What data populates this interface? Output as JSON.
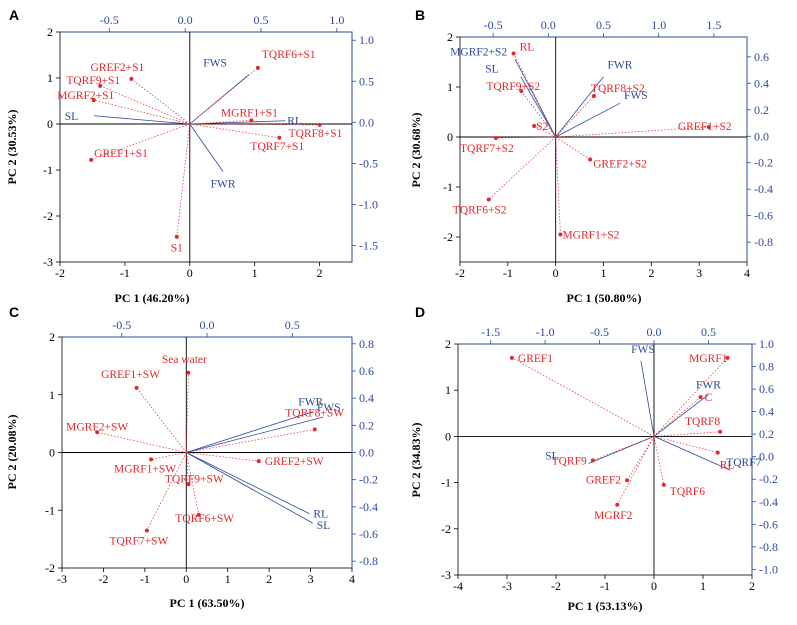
{
  "colors": {
    "score": "#e8262a",
    "loading": "#2e4a9e",
    "axis": "#000000",
    "secondary_axis": "#2e4a9e"
  },
  "chart_data": [
    {
      "panel": "A",
      "type": "scatter",
      "subtype": "pca-biplot",
      "xlabel": "PC 1 (46.20%)",
      "ylabel": "PC 2 (30.53%)",
      "xlim": [
        -2,
        2.5
      ],
      "ylim": [
        -3,
        2
      ],
      "xticks": [
        -2,
        -1,
        0,
        1,
        2
      ],
      "yticks": [
        -3,
        -2,
        -1,
        0,
        1,
        2
      ],
      "top_lim": [
        -0.825,
        1.1
      ],
      "top_ticks": [
        -0.5,
        0.0,
        0.5,
        1.0
      ],
      "right_lim": [
        -1.7,
        1.1
      ],
      "right_ticks": [
        -1.5,
        -1.0,
        -0.5,
        0.0,
        0.5,
        1.0
      ],
      "scores": [
        {
          "label": "GREF2+S1",
          "x": -0.9,
          "y": 0.98
        },
        {
          "label": "TQRF9+S1",
          "x": -1.38,
          "y": 0.83
        },
        {
          "label": "MGRF2+S1",
          "x": -1.48,
          "y": 0.52
        },
        {
          "label": "GREF1+S1",
          "x": -1.52,
          "y": -0.78
        },
        {
          "label": "S1",
          "x": -0.2,
          "y": -2.45
        },
        {
          "label": "TQRF6+S1",
          "x": 1.05,
          "y": 1.22
        },
        {
          "label": "MGRF1+S1",
          "x": 0.95,
          "y": 0.08
        },
        {
          "label": "TQRF8+S1",
          "x": 2.0,
          "y": -0.02
        },
        {
          "label": "TQRF7+S1",
          "x": 1.38,
          "y": -0.3
        }
      ],
      "loadings": [
        {
          "label": "FWS",
          "x": 0.42,
          "y": 0.58
        },
        {
          "label": "SL",
          "x": -0.6,
          "y": 0.08
        },
        {
          "label": "RL",
          "x": 0.66,
          "y": 0.02
        },
        {
          "label": "FWR",
          "x": 0.25,
          "y": -0.6
        }
      ]
    },
    {
      "panel": "B",
      "type": "scatter",
      "subtype": "pca-biplot",
      "xlabel": "PC 1 (50.80%)",
      "ylabel": "PC 2 (30.68%)",
      "xlim": [
        -2,
        4
      ],
      "ylim": [
        -2.5,
        2
      ],
      "xticks": [
        -2,
        -1,
        0,
        1,
        2,
        3,
        4
      ],
      "yticks": [
        -2,
        -1,
        0,
        1,
        2
      ],
      "top_lim": [
        -0.8,
        1.8
      ],
      "top_ticks": [
        -0.5,
        0.0,
        0.5,
        1.0,
        1.5
      ],
      "right_lim": [
        -0.95,
        0.75
      ],
      "right_ticks": [
        -0.8,
        -0.6,
        -0.4,
        -0.2,
        0.0,
        0.2,
        0.4,
        0.6
      ],
      "scores": [
        {
          "label": "RL",
          "x": -0.88,
          "y": 1.67
        },
        {
          "label": "TQRF9+S2",
          "x": -0.72,
          "y": 0.92
        },
        {
          "label": "TQRF8+S2",
          "x": 0.8,
          "y": 0.82
        },
        {
          "label": "S2",
          "x": -0.45,
          "y": 0.22
        },
        {
          "label": "TQRF7+S2",
          "x": -1.25,
          "y": -0.02
        },
        {
          "label": "GREF1+S2",
          "x": 3.2,
          "y": 0.2
        },
        {
          "label": "GREF2+S2",
          "x": 0.72,
          "y": -0.45
        },
        {
          "label": "TQRF6+S2",
          "x": -1.4,
          "y": -1.25
        },
        {
          "label": "MGRF1+S2",
          "x": 0.1,
          "y": -1.95
        }
      ],
      "loadings": [
        {
          "label": "MGRF2+S2",
          "x": -0.3,
          "y": 0.58
        },
        {
          "label": "SL",
          "x": -0.25,
          "y": 0.45
        },
        {
          "label": "FWR",
          "x": 0.5,
          "y": 0.45
        },
        {
          "label": "FWS",
          "x": 0.65,
          "y": 0.25
        }
      ]
    },
    {
      "panel": "C",
      "type": "scatter",
      "subtype": "pca-biplot",
      "xlabel": "PC 1 (63.50%)",
      "ylabel": "PC 2 (20.08%)",
      "xlim": [
        -3,
        4
      ],
      "ylim": [
        -2,
        2
      ],
      "xticks": [
        -3,
        -2,
        -1,
        0,
        1,
        2,
        3,
        4
      ],
      "yticks": [
        -2,
        -1,
        0,
        1,
        2
      ],
      "top_lim": [
        -0.85,
        0.85
      ],
      "top_ticks": [
        -0.5,
        0.0,
        0.5
      ],
      "right_lim": [
        -0.85,
        0.85
      ],
      "right_ticks": [
        -0.8,
        -0.6,
        -0.4,
        -0.2,
        0.0,
        0.2,
        0.4,
        0.6,
        0.8
      ],
      "scores": [
        {
          "label": "Sea water",
          "x": 0.05,
          "y": 1.38
        },
        {
          "label": "GREF1+SW",
          "x": -1.2,
          "y": 1.12
        },
        {
          "label": "MGRF2+SW",
          "x": -2.15,
          "y": 0.35
        },
        {
          "label": "TQRF8+SW",
          "x": 3.1,
          "y": 0.4
        },
        {
          "label": "MGRF1+SW",
          "x": -0.85,
          "y": -0.12
        },
        {
          "label": "GREF2+SW",
          "x": 1.75,
          "y": -0.15
        },
        {
          "label": "TQRF9+SW",
          "x": 0.05,
          "y": -0.55
        },
        {
          "label": "TQRF6+SW",
          "x": 0.3,
          "y": -1.08
        },
        {
          "label": "TQRF7+SW",
          "x": -0.95,
          "y": -1.35
        }
      ],
      "loadings": [
        {
          "label": "FWR",
          "x": 0.62,
          "y": 0.3
        },
        {
          "label": "FWS",
          "x": 0.68,
          "y": 0.26
        },
        {
          "label": "RL",
          "x": 0.6,
          "y": -0.45
        },
        {
          "label": "SL",
          "x": 0.62,
          "y": -0.52
        }
      ]
    },
    {
      "panel": "D",
      "type": "scatter",
      "subtype": "pca-biplot",
      "xlabel": "PC 1 (53.13%)",
      "ylabel": "PC 2 (34.83%)",
      "xlim": [
        -4,
        2
      ],
      "ylim": [
        -3,
        2
      ],
      "xticks": [
        -4,
        -3,
        -2,
        -1,
        0,
        1,
        2
      ],
      "yticks": [
        -3,
        -2,
        -1,
        0,
        1,
        2
      ],
      "top_lim": [
        -1.8,
        0.9
      ],
      "top_ticks": [
        -1.5,
        -1.0,
        -0.5,
        0.0,
        0.5
      ],
      "right_lim": [
        -1.05,
        1.0
      ],
      "right_ticks": [
        -1.0,
        -0.8,
        -0.6,
        -0.4,
        -0.2,
        0.0,
        0.2,
        0.4,
        0.6,
        0.8,
        1.0
      ],
      "scores": [
        {
          "label": "GREF1",
          "x": -2.9,
          "y": 1.7
        },
        {
          "label": "MGRF1",
          "x": 1.5,
          "y": 1.7
        },
        {
          "label": "C",
          "x": 0.95,
          "y": 0.85
        },
        {
          "label": "TQRF8",
          "x": 1.35,
          "y": 0.1
        },
        {
          "label": "RL",
          "x": 1.3,
          "y": -0.35
        },
        {
          "label": "TQRF9",
          "x": -1.25,
          "y": -0.52
        },
        {
          "label": "GREF2",
          "x": -0.55,
          "y": -0.95
        },
        {
          "label": "TQRF6",
          "x": 0.2,
          "y": -1.05
        },
        {
          "label": "MGRF2",
          "x": -0.75,
          "y": -1.48
        }
      ],
      "loadings": [
        {
          "label": "FWS",
          "x": -0.12,
          "y": 0.85
        },
        {
          "label": "FWR",
          "x": 0.5,
          "y": 0.55
        },
        {
          "label": "TQRF7",
          "x": 0.7,
          "y": -0.12
        },
        {
          "label": "SL",
          "x": -0.6,
          "y": -0.06
        }
      ]
    }
  ]
}
